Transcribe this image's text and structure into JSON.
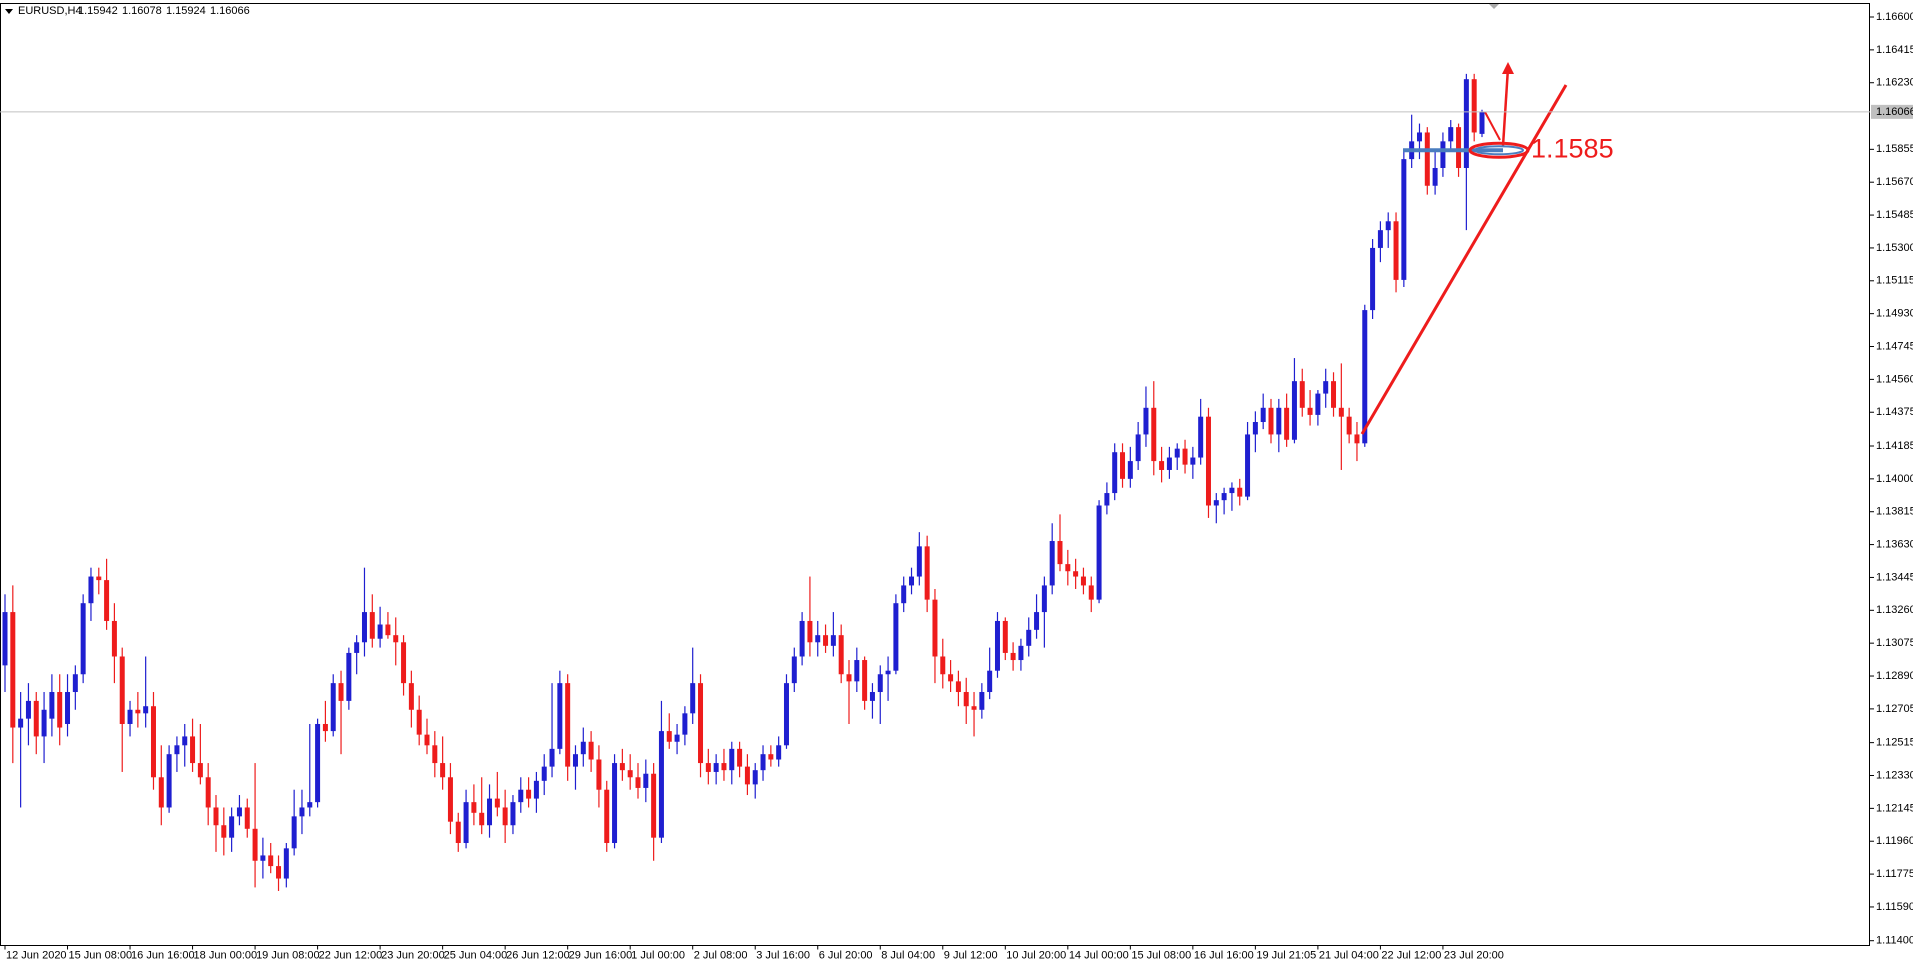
{
  "chart_data": {
    "type": "candlestick",
    "title": "EURUSD,H4",
    "up_color": "#1f1fd0",
    "down_color": "#ee1c1c",
    "level": 1.1585,
    "ylim": [
      1.11373,
      1.16676
    ],
    "yticks": [
      {
        "value": 1.166,
        "label": "1.16600"
      },
      1.16415,
      {
        "value": 1.1623,
        "label": "1.16230"
      },
      1.15855,
      {
        "value": 1.1567,
        "label": "1.15670"
      },
      1.15485,
      {
        "value": 1.153,
        "label": "1.15300"
      },
      1.15115,
      {
        "value": 1.1493,
        "label": "1.14930"
      },
      1.14745,
      {
        "value": 1.1456,
        "label": "1.14560"
      },
      1.14375,
      1.14185,
      {
        "value": 1.14,
        "label": "1.14000"
      },
      1.13815,
      {
        "value": 1.1363,
        "label": "1.13630"
      },
      1.13445,
      {
        "value": 1.1326,
        "label": "1.13260"
      },
      1.13075,
      {
        "value": 1.1289,
        "label": "1.12890"
      },
      1.12705,
      1.12515,
      {
        "value": 1.1233,
        "label": "1.12330"
      },
      1.12145,
      {
        "value": 1.1196,
        "label": "1.11960"
      },
      1.11775,
      {
        "value": 1.1159,
        "label": "1.11590"
      },
      {
        "value": 1.114,
        "label": "1.11400"
      }
    ],
    "categories": [
      "12 Jun 2020",
      null,
      null,
      null,
      null,
      null,
      null,
      null,
      "15 Jun 08:00",
      null,
      null,
      null,
      null,
      null,
      null,
      null,
      "16 Jun 16:00",
      null,
      null,
      null,
      null,
      null,
      null,
      null,
      "18 Jun 00:00",
      null,
      null,
      null,
      null,
      null,
      null,
      null,
      "19 Jun 08:00",
      null,
      null,
      null,
      null,
      null,
      null,
      null,
      "22 Jun 12:00",
      null,
      null,
      null,
      null,
      null,
      null,
      null,
      "23 Jun 20:00",
      null,
      null,
      null,
      null,
      null,
      null,
      null,
      "25 Jun 04:00",
      null,
      null,
      null,
      null,
      null,
      null,
      null,
      "26 Jun 12:00",
      null,
      null,
      null,
      null,
      null,
      null,
      null,
      "29 Jun 16:00",
      null,
      null,
      null,
      null,
      null,
      null,
      null,
      "1 Jul 00:00",
      null,
      null,
      null,
      null,
      null,
      null,
      null,
      "2 Jul 08:00",
      null,
      null,
      null,
      null,
      null,
      null,
      null,
      "3 Jul 16:00",
      null,
      null,
      null,
      null,
      null,
      null,
      null,
      "6 Jul 20:00",
      null,
      null,
      null,
      null,
      null,
      null,
      null,
      "8 Jul 04:00",
      null,
      null,
      null,
      null,
      null,
      null,
      null,
      "9 Jul 12:00",
      null,
      null,
      null,
      null,
      null,
      null,
      null,
      "10 Jul 20:00",
      null,
      null,
      null,
      null,
      null,
      null,
      null,
      "14 Jul 00:00",
      null,
      null,
      null,
      null,
      null,
      null,
      null,
      "15 Jul 08:00",
      null,
      null,
      null,
      null,
      null,
      null,
      null,
      "16 Jul 16:00",
      null,
      null,
      null,
      null,
      null,
      null,
      null,
      "19 Jul 21:05",
      null,
      null,
      null,
      null,
      null,
      null,
      null,
      "21 Jul 04:00",
      null,
      null,
      null,
      null,
      null,
      null,
      null,
      "22 Jul 12:00",
      null,
      null,
      null,
      null,
      null,
      null,
      null,
      "23 Jul 20:00",
      null,
      null,
      null,
      null,
      null
    ],
    "open": [
      1.1295,
      1.1325,
      1.126,
      1.1265,
      1.1275,
      1.1255,
      1.1265,
      1.128,
      1.1262,
      1.128,
      1.129,
      1.133,
      1.1345,
      1.1343,
      1.132,
      1.13,
      1.1262,
      1.127,
      1.1268,
      1.1272,
      1.1232,
      1.1215,
      1.1245,
      1.125,
      1.1255,
      1.124,
      1.1232,
      1.1215,
      1.1205,
      1.1198,
      1.121,
      1.1215,
      1.1203,
      1.1185,
      1.1188,
      1.1182,
      1.1175,
      1.1192,
      1.121,
      1.1215,
      1.1218,
      1.1262,
      1.1258,
      1.1285,
      1.1275,
      1.1302,
      1.1308,
      1.1325,
      1.131,
      1.1318,
      1.1312,
      1.1308,
      1.1285,
      1.127,
      1.1256,
      1.125,
      1.124,
      1.1232,
      1.1207,
      1.1195,
      1.1218,
      1.1212,
      1.1205,
      1.122,
      1.1215,
      1.1205,
      1.1218,
      1.1225,
      1.122,
      1.123,
      1.1238,
      1.1248,
      1.1285,
      1.1238,
      1.1245,
      1.1252,
      1.1242,
      1.1225,
      1.1195,
      1.124,
      1.1236,
      1.1232,
      1.1226,
      1.1234,
      1.1198,
      1.1258,
      1.1252,
      1.1256,
      1.1268,
      1.1285,
      1.124,
      1.1235,
      1.124,
      1.1236,
      1.1248,
      1.1238,
      1.1228,
      1.1236,
      1.1245,
      1.1242,
      1.125,
      1.1285,
      1.13,
      1.132,
      1.1308,
      1.1312,
      1.1306,
      1.1312,
      1.129,
      1.1286,
      1.1298,
      1.1275,
      1.128,
      1.129,
      1.1292,
      1.133,
      1.134,
      1.1345,
      1.1362,
      1.1332,
      1.13,
      1.129,
      1.1286,
      1.128,
      1.1272,
      1.127,
      1.128,
      1.1292,
      1.132,
      1.1302,
      1.1298,
      1.1306,
      1.1315,
      1.1325,
      1.134,
      1.1365,
      1.1352,
      1.1348,
      1.1345,
      1.134,
      1.1332,
      1.1385,
      1.1392,
      1.1415,
      1.14,
      1.141,
      1.1425,
      1.144,
      1.141,
      1.1405,
      1.1412,
      1.1417,
      1.1408,
      1.1412,
      1.1435,
      1.1385,
      1.1388,
      1.1392,
      1.1395,
      1.139,
      1.1425,
      1.1432,
      1.144,
      1.1425,
      1.144,
      1.1422,
      1.1455,
      1.144,
      1.1436,
      1.1448,
      1.1455,
      1.144,
      1.1435,
      1.1425,
      1.142,
      1.1495,
      1.153,
      1.154,
      1.1545,
      1.1512,
      1.158,
      1.159,
      1.1595,
      1.1565,
      1.1575,
      1.159,
      1.1598,
      1.1575,
      1.1625,
      1.15942
    ],
    "high": [
      1.1335,
      1.134,
      1.128,
      1.1285,
      1.128,
      1.128,
      1.129,
      1.129,
      1.129,
      1.1295,
      1.1335,
      1.135,
      1.135,
      1.1355,
      1.133,
      1.1305,
      1.1275,
      1.128,
      1.13,
      1.128,
      1.125,
      1.125,
      1.1255,
      1.1262,
      1.1265,
      1.1262,
      1.124,
      1.1222,
      1.1215,
      1.1215,
      1.1222,
      1.122,
      1.124,
      1.1198,
      1.1195,
      1.1188,
      1.1195,
      1.1225,
      1.1225,
      1.1262,
      1.1265,
      1.1275,
      1.129,
      1.1292,
      1.1305,
      1.1312,
      1.135,
      1.1335,
      1.1328,
      1.1325,
      1.1322,
      1.1312,
      1.1292,
      1.1278,
      1.1265,
      1.1258,
      1.1255,
      1.124,
      1.1212,
      1.1225,
      1.1228,
      1.1232,
      1.1228,
      1.1235,
      1.1225,
      1.1222,
      1.1232,
      1.1232,
      1.1235,
      1.1245,
      1.1285,
      1.1292,
      1.129,
      1.125,
      1.126,
      1.1258,
      1.125,
      1.123,
      1.1245,
      1.1248,
      1.1245,
      1.124,
      1.1242,
      1.124,
      1.1275,
      1.1268,
      1.1262,
      1.1272,
      1.1305,
      1.129,
      1.1248,
      1.1245,
      1.1248,
      1.1252,
      1.1252,
      1.1245,
      1.124,
      1.125,
      1.125,
      1.1255,
      1.129,
      1.1305,
      1.1325,
      1.1345,
      1.132,
      1.1318,
      1.1325,
      1.1318,
      1.1298,
      1.1305,
      1.13,
      1.1285,
      1.1295,
      1.13,
      1.1335,
      1.1345,
      1.135,
      1.137,
      1.1368,
      1.1338,
      1.131,
      1.1298,
      1.1292,
      1.1288,
      1.128,
      1.1285,
      1.1305,
      1.1325,
      1.1322,
      1.1308,
      1.131,
      1.1322,
      1.1335,
      1.1345,
      1.1375,
      1.138,
      1.136,
      1.1355,
      1.135,
      1.1345,
      1.1388,
      1.1398,
      1.142,
      1.142,
      1.1418,
      1.1432,
      1.1452,
      1.1455,
      1.1418,
      1.1418,
      1.142,
      1.1422,
      1.1418,
      1.1445,
      1.144,
      1.1392,
      1.1395,
      1.1398,
      1.14,
      1.1432,
      1.1438,
      1.1448,
      1.1445,
      1.1445,
      1.1448,
      1.1468,
      1.1462,
      1.145,
      1.145,
      1.1462,
      1.146,
      1.1465,
      1.144,
      1.1432,
      1.1498,
      1.1535,
      1.1545,
      1.155,
      1.155,
      1.1585,
      1.1605,
      1.16,
      1.1598,
      1.1585,
      1.1595,
      1.1602,
      1.16,
      1.1628,
      1.1628,
      1.16078
    ],
    "low": [
      1.128,
      1.124,
      1.1215,
      1.125,
      1.1245,
      1.124,
      1.1255,
      1.125,
      1.1255,
      1.127,
      1.1285,
      1.132,
      1.1335,
      1.1315,
      1.1285,
      1.1235,
      1.1255,
      1.126,
      1.126,
      1.1225,
      1.1205,
      1.1212,
      1.1235,
      1.1238,
      1.1235,
      1.1228,
      1.1205,
      1.119,
      1.1188,
      1.119,
      1.1205,
      1.1198,
      1.117,
      1.1175,
      1.1178,
      1.1168,
      1.117,
      1.1188,
      1.12,
      1.121,
      1.1215,
      1.1252,
      1.1255,
      1.1245,
      1.127,
      1.129,
      1.13,
      1.1305,
      1.1305,
      1.131,
      1.1295,
      1.1278,
      1.126,
      1.125,
      1.1245,
      1.1232,
      1.1225,
      1.12,
      1.119,
      1.1192,
      1.1205,
      1.12,
      1.1198,
      1.121,
      1.1195,
      1.12,
      1.1212,
      1.1215,
      1.1212,
      1.1222,
      1.1232,
      1.1245,
      1.123,
      1.1225,
      1.1238,
      1.1235,
      1.1215,
      1.119,
      1.1192,
      1.123,
      1.1225,
      1.122,
      1.1218,
      1.1185,
      1.1195,
      1.1248,
      1.1245,
      1.125,
      1.1262,
      1.1232,
      1.1228,
      1.1228,
      1.123,
      1.1228,
      1.1232,
      1.1222,
      1.122,
      1.123,
      1.1238,
      1.1238,
      1.1248,
      1.128,
      1.1295,
      1.13,
      1.13,
      1.1302,
      1.13,
      1.1285,
      1.1262,
      1.128,
      1.127,
      1.1265,
      1.1262,
      1.1275,
      1.129,
      1.1325,
      1.1335,
      1.134,
      1.1325,
      1.1285,
      1.1282,
      1.128,
      1.1272,
      1.1262,
      1.1255,
      1.1265,
      1.1276,
      1.1288,
      1.1298,
      1.1292,
      1.1292,
      1.13,
      1.131,
      1.1305,
      1.1335,
      1.1348,
      1.134,
      1.1338,
      1.1335,
      1.1325,
      1.133,
      1.138,
      1.1388,
      1.1395,
      1.1395,
      1.1405,
      1.1418,
      1.1402,
      1.1398,
      1.14,
      1.1405,
      1.1403,
      1.14,
      1.1408,
      1.1378,
      1.1375,
      1.138,
      1.1382,
      1.1385,
      1.1388,
      1.1415,
      1.1428,
      1.142,
      1.1415,
      1.1418,
      1.142,
      1.1435,
      1.143,
      1.143,
      1.144,
      1.1435,
      1.1405,
      1.142,
      1.141,
      1.1418,
      1.149,
      1.1522,
      1.153,
      1.1505,
      1.1508,
      1.1575,
      1.158,
      1.156,
      1.156,
      1.157,
      1.1585,
      1.157,
      1.154,
      1.159,
      1.15924
    ],
    "close": [
      1.1325,
      1.126,
      1.1265,
      1.1275,
      1.1255,
      1.127,
      1.128,
      1.126,
      1.128,
      1.129,
      1.133,
      1.1345,
      1.1343,
      1.132,
      1.13,
      1.1262,
      1.127,
      1.1268,
      1.1272,
      1.1232,
      1.1215,
      1.1245,
      1.125,
      1.1255,
      1.124,
      1.1232,
      1.1215,
      1.1205,
      1.1198,
      1.121,
      1.1215,
      1.1203,
      1.1185,
      1.1188,
      1.1182,
      1.1175,
      1.1192,
      1.121,
      1.1215,
      1.1218,
      1.1262,
      1.1258,
      1.1285,
      1.1275,
      1.1302,
      1.1308,
      1.1325,
      1.131,
      1.1318,
      1.1312,
      1.1308,
      1.1285,
      1.127,
      1.1256,
      1.125,
      1.124,
      1.1232,
      1.1207,
      1.1195,
      1.1218,
      1.1212,
      1.1205,
      1.122,
      1.1215,
      1.1205,
      1.1218,
      1.1225,
      1.122,
      1.123,
      1.1238,
      1.1248,
      1.1285,
      1.1238,
      1.1245,
      1.1252,
      1.1242,
      1.1225,
      1.1195,
      1.124,
      1.1236,
      1.1232,
      1.1226,
      1.1234,
      1.1198,
      1.1258,
      1.1252,
      1.1256,
      1.1268,
      1.1285,
      1.124,
      1.1235,
      1.124,
      1.1236,
      1.1248,
      1.1238,
      1.1228,
      1.1236,
      1.1245,
      1.1242,
      1.125,
      1.1285,
      1.13,
      1.132,
      1.1308,
      1.1312,
      1.1306,
      1.1312,
      1.129,
      1.1286,
      1.1298,
      1.1275,
      1.128,
      1.129,
      1.1292,
      1.133,
      1.134,
      1.1345,
      1.1362,
      1.1332,
      1.13,
      1.129,
      1.1286,
      1.128,
      1.1272,
      1.127,
      1.128,
      1.1292,
      1.132,
      1.1302,
      1.1298,
      1.1306,
      1.1315,
      1.1325,
      1.134,
      1.1365,
      1.1352,
      1.1348,
      1.1345,
      1.134,
      1.1332,
      1.1385,
      1.1392,
      1.1415,
      1.14,
      1.141,
      1.1425,
      1.144,
      1.141,
      1.1405,
      1.1412,
      1.1417,
      1.1408,
      1.1412,
      1.1435,
      1.1385,
      1.1388,
      1.1392,
      1.1395,
      1.139,
      1.1425,
      1.1432,
      1.144,
      1.1425,
      1.144,
      1.1422,
      1.1455,
      1.144,
      1.1436,
      1.1448,
      1.1455,
      1.144,
      1.1435,
      1.1425,
      1.142,
      1.1495,
      1.153,
      1.154,
      1.1545,
      1.1512,
      1.158,
      1.159,
      1.1595,
      1.1565,
      1.1575,
      1.159,
      1.1598,
      1.1575,
      1.1625,
      1.1595,
      1.16066
    ]
  }
}
